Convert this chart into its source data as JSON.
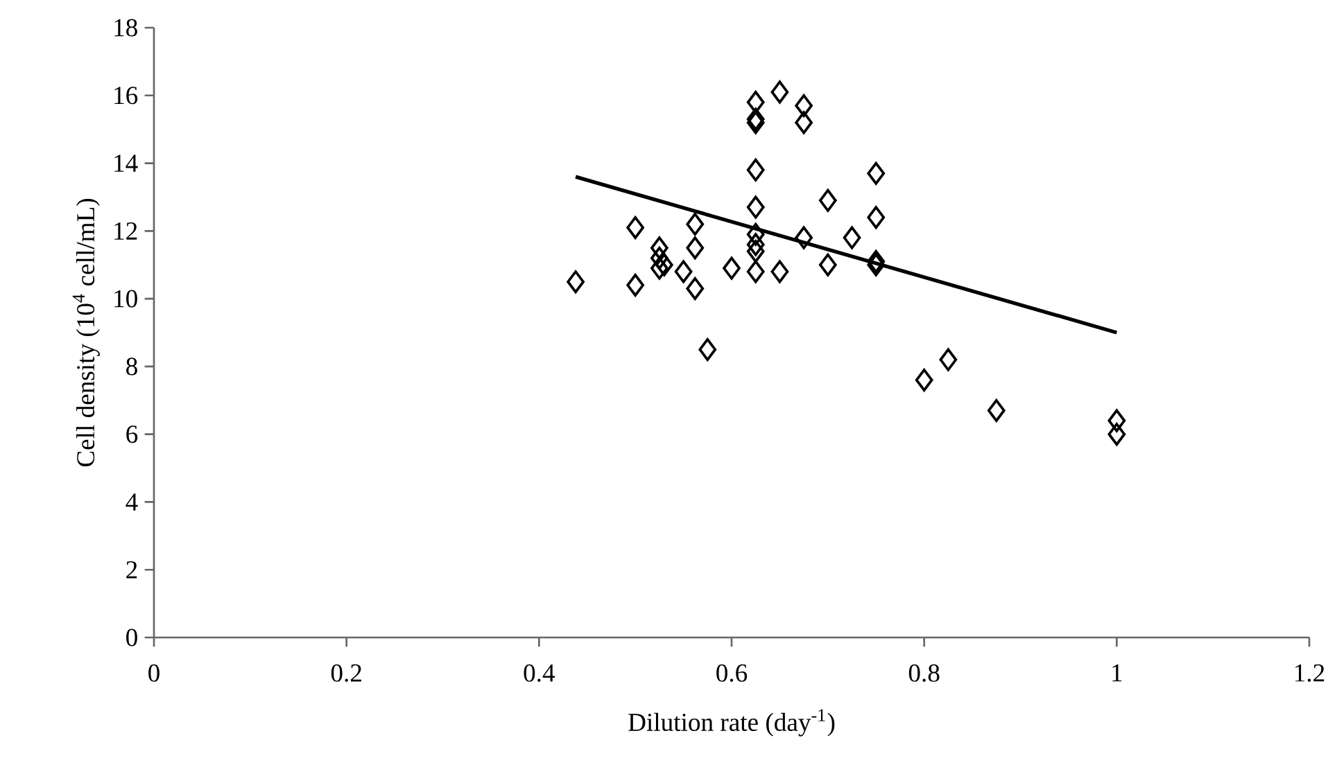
{
  "chart_data": {
    "type": "scatter",
    "xlabel": "Dilution rate (day$^{-1}$)",
    "ylabel": "Cell density (10$^{4}$ cell/mL)",
    "xlim": [
      0,
      1.2
    ],
    "ylim": [
      0,
      18
    ],
    "xticks": [
      0,
      0.2,
      0.4,
      0.6,
      0.8,
      1,
      1.2
    ],
    "yticks": [
      0,
      2,
      4,
      6,
      8,
      10,
      12,
      14,
      16,
      18
    ],
    "series": [
      {
        "marker": "diamond",
        "color": "#000000",
        "x": [
          0.438,
          0.5,
          0.5,
          0.525,
          0.525,
          0.525,
          0.53,
          0.55,
          0.562,
          0.562,
          0.562,
          0.575,
          0.6,
          0.625,
          0.625,
          0.625,
          0.625,
          0.625,
          0.625,
          0.625,
          0.625,
          0.625,
          0.65,
          0.65,
          0.675,
          0.675,
          0.675,
          0.7,
          0.7,
          0.725,
          0.75,
          0.75,
          0.75,
          0.75,
          0.8,
          0.825,
          0.875,
          1.0,
          1.0
        ],
        "values": [
          10.5,
          12.1,
          10.4,
          11.5,
          11.2,
          10.9,
          11.0,
          10.8,
          12.2,
          11.5,
          10.3,
          8.5,
          10.9,
          15.8,
          15.3,
          15.2,
          13.8,
          12.7,
          11.9,
          11.6,
          11.4,
          10.8,
          16.1,
          10.8,
          15.7,
          15.2,
          11.8,
          12.9,
          11.0,
          11.8,
          13.7,
          12.4,
          11.1,
          11.0,
          7.6,
          8.2,
          6.7,
          6.4,
          6.0
        ]
      },
      {
        "type": "line",
        "marker": "none",
        "color": "#000000",
        "x": [
          0.438,
          1.0
        ],
        "values": [
          13.6,
          9.0
        ]
      }
    ]
  }
}
